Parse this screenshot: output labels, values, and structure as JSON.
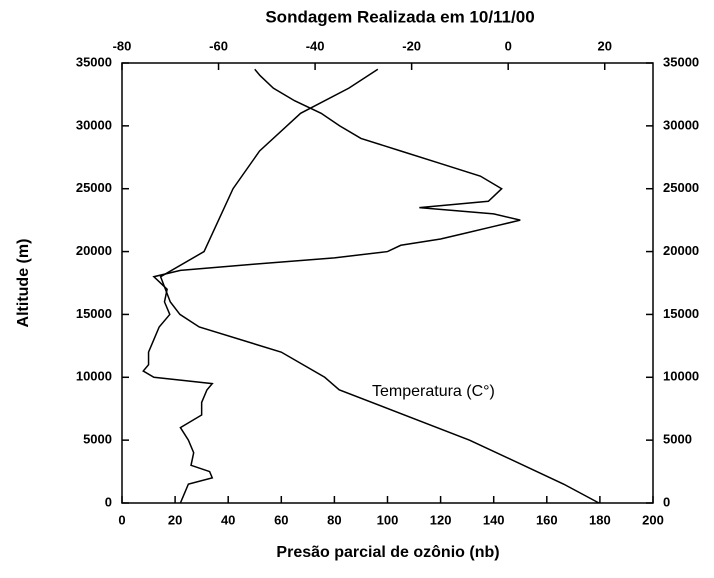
{
  "chart_data": {
    "type": "line",
    "title": "Sondagem Realizada em 10/11/00",
    "xlabel": "Presão parcial de ozônio (nb)",
    "ylabel": "Altitude (m)",
    "annotation": "Temperatura (C°)",
    "xlim": [
      0,
      200
    ],
    "xticks": [
      0,
      20,
      40,
      60,
      80,
      100,
      120,
      140,
      160,
      180,
      200
    ],
    "x2lim": [
      -80,
      30
    ],
    "x2ticks": [
      -80,
      -60,
      -40,
      -20,
      0,
      20
    ],
    "ylim": [
      0,
      35000
    ],
    "yticks": [
      0,
      5000,
      10000,
      15000,
      20000,
      25000,
      30000,
      35000
    ],
    "color": "#000000",
    "series": [
      {
        "axis": "x",
        "x": [
          22,
          23,
          25,
          34,
          33,
          26,
          27,
          25,
          22,
          30,
          30,
          32,
          34,
          12,
          8,
          10,
          10,
          12,
          14,
          18,
          16,
          17,
          12,
          22,
          50,
          80,
          100,
          105,
          120,
          130,
          140,
          150,
          140,
          112,
          138,
          143,
          135,
          120,
          105,
          90,
          82,
          75,
          65,
          57,
          52,
          50
        ],
        "y": [
          0,
          500,
          1500,
          2000,
          2500,
          3000,
          4000,
          5000,
          6000,
          7000,
          8000,
          9000,
          9500,
          10000,
          10500,
          11000,
          12000,
          13000,
          14000,
          15000,
          16000,
          17000,
          18000,
          18500,
          19000,
          19500,
          20000,
          20500,
          21000,
          21500,
          22000,
          22500,
          23000,
          23500,
          24000,
          25000,
          26000,
          27000,
          28000,
          29000,
          30000,
          31000,
          32000,
          33000,
          34000,
          34500
        ]
      },
      {
        "axis": "x2",
        "x": [
          18.8,
          11.5,
          -8,
          -35,
          -38,
          -47,
          -64,
          -68,
          -70,
          -72,
          -63,
          -57,
          -51.5,
          -43,
          -33,
          -27
        ],
        "y": [
          0,
          1500,
          5000,
          9000,
          10000,
          12000,
          14000,
          15000,
          16000,
          18000,
          20000,
          25000,
          28000,
          31000,
          33000,
          34500
        ]
      }
    ]
  }
}
